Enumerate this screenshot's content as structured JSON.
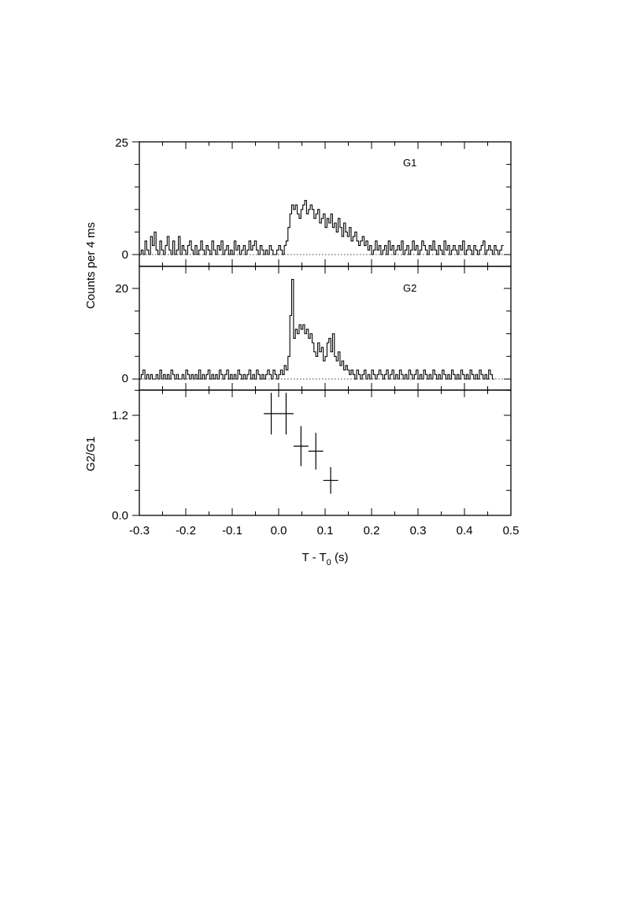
{
  "chart_data": [
    {
      "type": "line",
      "step": "histogram",
      "label": "G1",
      "ylabel": "Counts per 4 ms",
      "xlim": [
        -0.3,
        0.5
      ],
      "ylim": [
        -3,
        25
      ],
      "yticks": [
        0,
        25
      ],
      "bin_width": 0.004,
      "x_start": -0.3,
      "baseline": 0,
      "values": [
        0,
        1,
        0,
        3,
        1,
        0,
        4,
        2,
        5,
        1,
        0,
        3,
        1,
        0,
        2,
        4,
        1,
        0,
        3,
        0,
        1,
        4,
        0,
        2,
        1,
        0,
        2,
        3,
        1,
        0,
        2,
        0,
        1,
        3,
        1,
        0,
        2,
        1,
        0,
        3,
        1,
        0,
        2,
        1,
        3,
        0,
        1,
        2,
        0,
        1,
        0,
        3,
        1,
        2,
        0,
        1,
        2,
        0,
        1,
        3,
        1,
        2,
        3,
        1,
        0,
        2,
        1,
        0,
        1,
        0,
        2,
        1,
        0,
        0,
        1,
        2,
        1,
        0,
        2,
        3,
        6,
        9,
        11,
        10,
        11,
        9,
        8,
        10,
        11,
        12,
        9,
        10,
        11,
        10,
        8,
        9,
        10,
        7,
        8,
        9,
        6,
        8,
        7,
        9,
        6,
        7,
        5,
        8,
        6,
        4,
        7,
        5,
        4,
        6,
        3,
        4,
        5,
        3,
        2,
        3,
        4,
        2,
        3,
        1,
        2,
        0,
        1,
        3,
        1,
        2,
        0,
        1,
        2,
        0,
        3,
        1,
        2,
        0,
        1,
        2,
        1,
        3,
        0,
        1,
        2,
        0,
        1,
        3,
        1,
        2,
        0,
        1,
        3,
        2,
        1,
        0,
        2,
        1,
        3,
        1,
        0,
        2,
        1,
        0,
        3,
        1,
        2,
        0,
        1,
        2,
        1,
        0,
        2,
        1,
        3,
        0,
        1,
        2,
        1,
        0,
        2,
        1,
        0,
        1,
        2,
        3,
        0,
        1,
        2,
        1,
        0,
        2,
        1,
        0,
        1,
        2
      ]
    },
    {
      "type": "line",
      "step": "histogram",
      "label": "G2",
      "ylabel": "Counts per 4 ms",
      "xlim": [
        -0.3,
        0.5
      ],
      "ylim": [
        -3,
        25
      ],
      "yticks": [
        0,
        20
      ],
      "bin_width": 0.004,
      "x_start": -0.3,
      "baseline": 0,
      "values": [
        0,
        1,
        2,
        0,
        1,
        0,
        1,
        0,
        0,
        1,
        0,
        2,
        0,
        1,
        0,
        1,
        0,
        2,
        1,
        0,
        1,
        0,
        0,
        1,
        0,
        2,
        1,
        0,
        1,
        0,
        1,
        0,
        2,
        0,
        1,
        0,
        1,
        2,
        0,
        1,
        0,
        1,
        0,
        2,
        1,
        0,
        1,
        2,
        0,
        1,
        0,
        1,
        0,
        2,
        1,
        0,
        1,
        0,
        1,
        2,
        0,
        1,
        0,
        2,
        1,
        0,
        1,
        0,
        1,
        2,
        1,
        0,
        2,
        1,
        0,
        1,
        2,
        1,
        3,
        2,
        5,
        14,
        22,
        9,
        11,
        10,
        12,
        11,
        12,
        10,
        11,
        9,
        10,
        8,
        6,
        5,
        8,
        6,
        7,
        4,
        5,
        8,
        9,
        6,
        10,
        5,
        4,
        6,
        3,
        4,
        2,
        3,
        2,
        1,
        2,
        1,
        0,
        2,
        1,
        0,
        1,
        2,
        0,
        1,
        0,
        2,
        1,
        0,
        1,
        2,
        1,
        0,
        1,
        2,
        0,
        1,
        2,
        0,
        1,
        0,
        2,
        1,
        0,
        1,
        0,
        2,
        1,
        0,
        1,
        2,
        0,
        1,
        0,
        2,
        1,
        0,
        1,
        0,
        2,
        1,
        0,
        1,
        0,
        2,
        1,
        0,
        1,
        0,
        2,
        1,
        0,
        1,
        0,
        2,
        1,
        0,
        1,
        0,
        2,
        1,
        0,
        1,
        0,
        2,
        1,
        0,
        1,
        0,
        2,
        1,
        0
      ]
    },
    {
      "type": "scatter",
      "error_bars": true,
      "ylabel": "G2/G1",
      "xlabel": "T - T0 (s)",
      "xlim": [
        -0.3,
        0.5
      ],
      "ylim": [
        0.0,
        1.5
      ],
      "yticks": [
        0.0,
        1.2
      ],
      "xticks": [
        -0.3,
        -0.2,
        -0.1,
        0.0,
        0.1,
        0.2,
        0.3,
        0.4,
        0.5
      ],
      "points": [
        {
          "x": -0.016,
          "y": 1.22,
          "xerr": 0.016,
          "yerr": 0.25
        },
        {
          "x": 0.016,
          "y": 1.22,
          "xerr": 0.016,
          "yerr": 0.25
        },
        {
          "x": 0.048,
          "y": 0.83,
          "xerr": 0.016,
          "yerr": 0.24
        },
        {
          "x": 0.08,
          "y": 0.77,
          "xerr": 0.016,
          "yerr": 0.22
        },
        {
          "x": 0.112,
          "y": 0.42,
          "xerr": 0.016,
          "yerr": 0.16
        }
      ]
    }
  ],
  "labels": {
    "panel1_name": "G1",
    "panel2_name": "G2",
    "ylabel_counts": "Counts per 4 ms",
    "ylabel_ratio": "G2/G1",
    "xlabel_main": "T - T",
    "xlabel_sub": "0",
    "xlabel_unit": " (s)",
    "p1_ytick_top": "25",
    "p1_ytick_zero": "0",
    "p2_ytick_top": "20",
    "p2_ytick_zero": "0",
    "p3_ytick_top": "1.2",
    "p3_ytick_zero": "0.0",
    "xtick_labels": [
      "-0.3",
      "-0.2",
      "-0.1",
      "0.0",
      "0.1",
      "0.2",
      "0.3",
      "0.4",
      "0.5"
    ]
  }
}
